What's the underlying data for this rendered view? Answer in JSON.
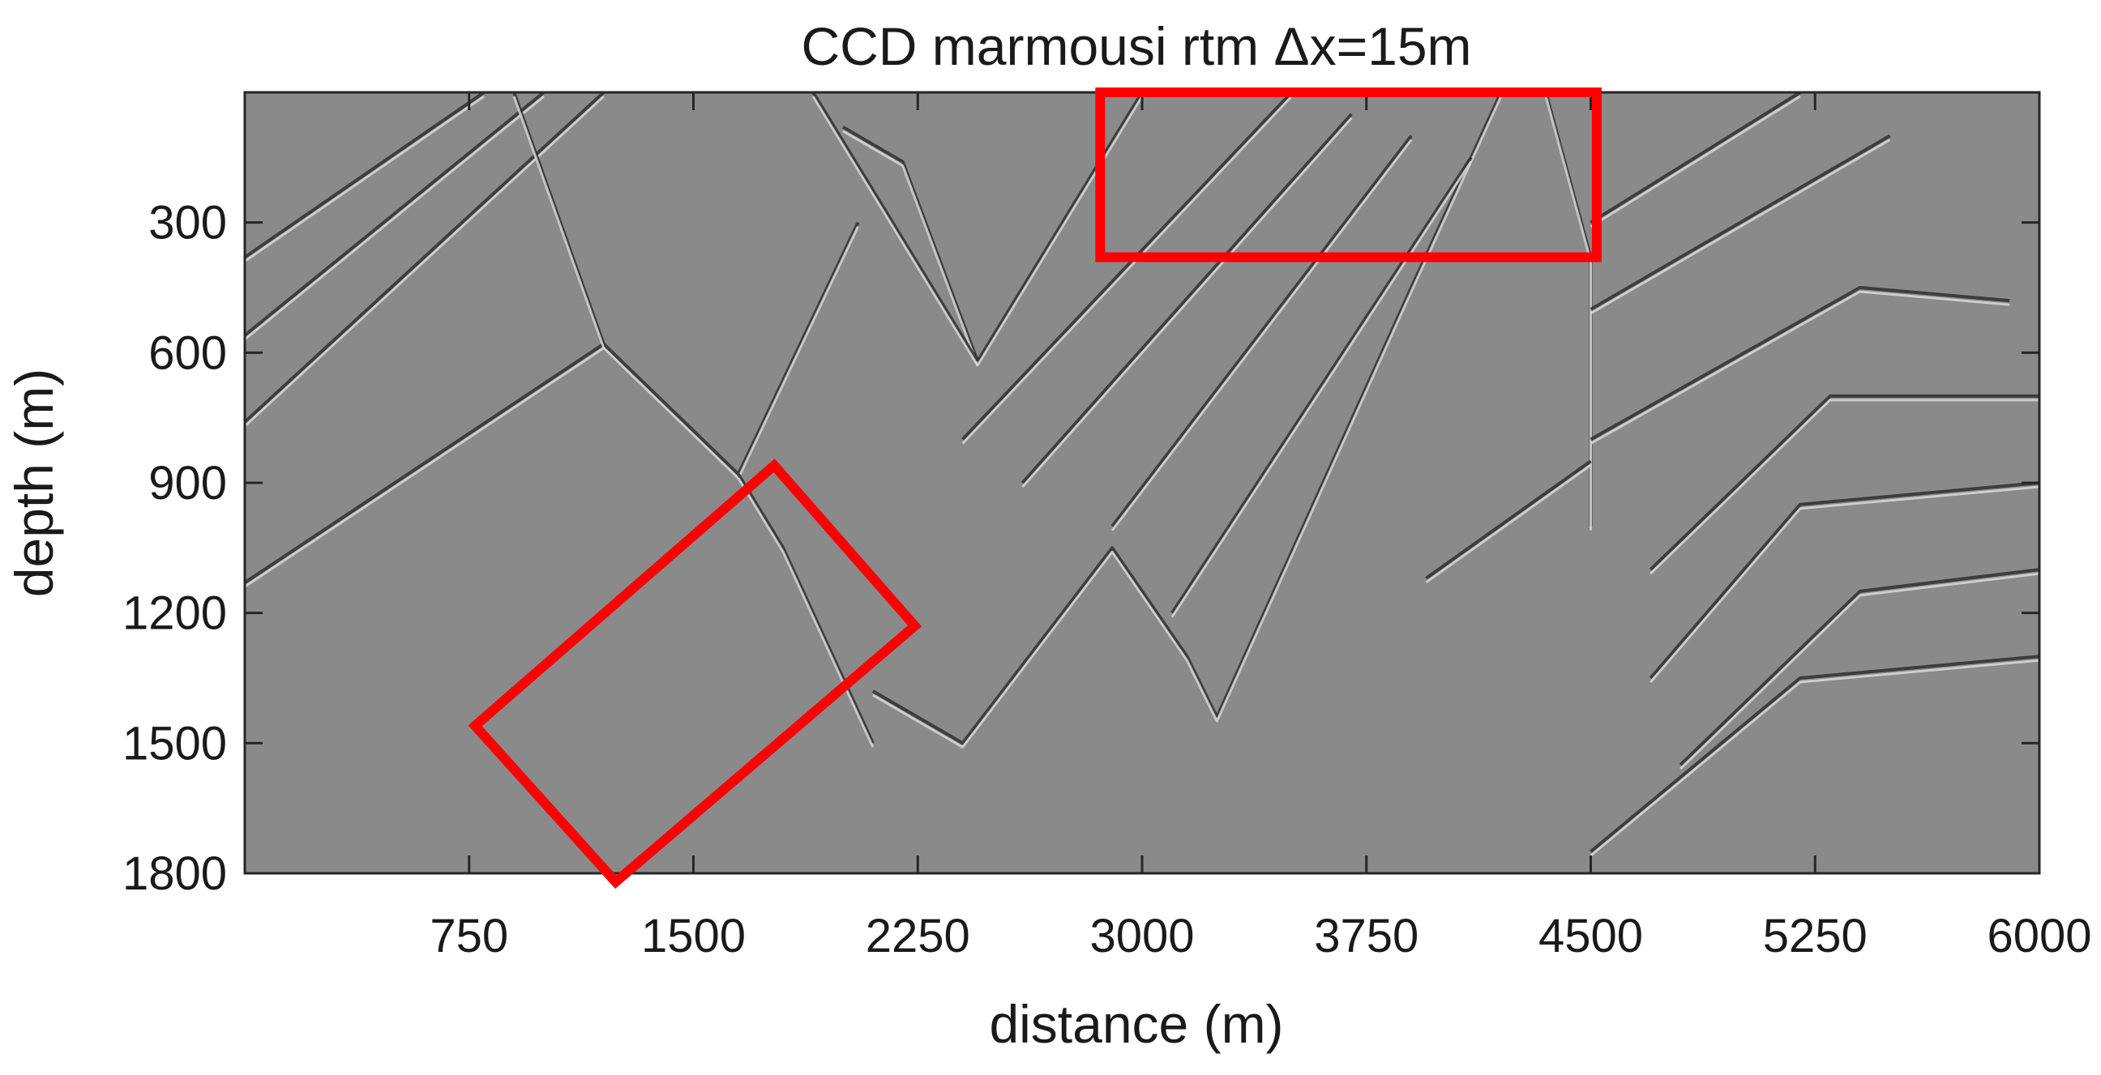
{
  "chart_data": {
    "type": "heatmap",
    "title": "CCD marmousi rtm Δx=15m",
    "xlabel": "distance (m)",
    "ylabel": "depth (m)",
    "xlim": [
      0,
      6000
    ],
    "ylim": [
      0,
      1800
    ],
    "y_reversed": true,
    "xticks": [
      750,
      1500,
      2250,
      3000,
      3750,
      4500,
      5250,
      6000
    ],
    "yticks": [
      300,
      600,
      900,
      1200,
      1500,
      1800
    ],
    "grid": false,
    "colormap": "gray",
    "background_color": "#8a8a8a",
    "annotation_color": "#ff0000",
    "annotations": [
      {
        "type": "rectangle",
        "corners": [
          [
            2860,
            0
          ],
          [
            4520,
            0
          ],
          [
            4520,
            380
          ],
          [
            2860,
            380
          ]
        ]
      },
      {
        "type": "rotated-rectangle",
        "corners": [
          [
            1770,
            860
          ],
          [
            2240,
            1230
          ],
          [
            1240,
            1820
          ],
          [
            770,
            1460
          ]
        ]
      }
    ],
    "reflectors": [
      [
        [
          0,
          380
        ],
        [
          800,
          0
        ]
      ],
      [
        [
          0,
          560
        ],
        [
          1000,
          0
        ]
      ],
      [
        [
          0,
          760
        ],
        [
          1200,
          0
        ]
      ],
      [
        [
          0,
          1130
        ],
        [
          1200,
          580
        ],
        [
          1650,
          880
        ],
        [
          2050,
          300
        ]
      ],
      [
        [
          1200,
          580
        ],
        [
          900,
          0
        ]
      ],
      [
        [
          1650,
          880
        ],
        [
          1800,
          1050
        ],
        [
          2100,
          1500
        ]
      ],
      [
        [
          2000,
          80
        ],
        [
          2200,
          160
        ],
        [
          2450,
          620
        ],
        [
          3000,
          0
        ]
      ],
      [
        [
          1900,
          0
        ],
        [
          2450,
          620
        ]
      ],
      [
        [
          2100,
          1380
        ],
        [
          2400,
          1500
        ],
        [
          2900,
          1050
        ],
        [
          3150,
          1300
        ],
        [
          3250,
          1440
        ],
        [
          3900,
          450
        ],
        [
          4200,
          0
        ]
      ],
      [
        [
          2400,
          800
        ],
        [
          3500,
          0
        ]
      ],
      [
        [
          2600,
          900
        ],
        [
          3700,
          50
        ]
      ],
      [
        [
          2900,
          1000
        ],
        [
          3900,
          100
        ]
      ],
      [
        [
          3100,
          1200
        ],
        [
          4100,
          150
        ]
      ],
      [
        [
          4350,
          0
        ],
        [
          4500,
          380
        ],
        [
          4500,
          1000
        ]
      ],
      [
        [
          4500,
          800
        ],
        [
          5400,
          450
        ],
        [
          5900,
          480
        ]
      ],
      [
        [
          3950,
          1120
        ],
        [
          4500,
          850
        ]
      ],
      [
        [
          4500,
          300
        ],
        [
          5200,
          0
        ]
      ],
      [
        [
          4500,
          500
        ],
        [
          5500,
          100
        ]
      ],
      [
        [
          4700,
          1350
        ],
        [
          5200,
          950
        ],
        [
          6000,
          900
        ]
      ],
      [
        [
          4800,
          1550
        ],
        [
          5400,
          1150
        ],
        [
          6000,
          1100
        ]
      ],
      [
        [
          4500,
          1750
        ],
        [
          5200,
          1350
        ],
        [
          6000,
          1300
        ]
      ],
      [
        [
          4700,
          1100
        ],
        [
          5300,
          700
        ],
        [
          6000,
          700
        ]
      ]
    ]
  }
}
